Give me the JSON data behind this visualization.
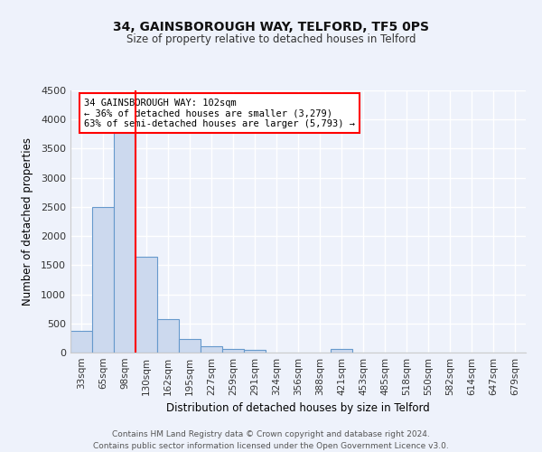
{
  "title1": "34, GAINSBOROUGH WAY, TELFORD, TF5 0PS",
  "title2": "Size of property relative to detached houses in Telford",
  "xlabel": "Distribution of detached houses by size in Telford",
  "ylabel": "Number of detached properties",
  "categories": [
    "33sqm",
    "65sqm",
    "98sqm",
    "130sqm",
    "162sqm",
    "195sqm",
    "227sqm",
    "259sqm",
    "291sqm",
    "324sqm",
    "356sqm",
    "388sqm",
    "421sqm",
    "453sqm",
    "485sqm",
    "518sqm",
    "550sqm",
    "582sqm",
    "614sqm",
    "647sqm",
    "679sqm"
  ],
  "values": [
    380,
    2500,
    3800,
    1650,
    580,
    240,
    105,
    55,
    40,
    0,
    0,
    0,
    55,
    0,
    0,
    0,
    0,
    0,
    0,
    0,
    0
  ],
  "bar_color": "#ccd9ee",
  "bar_edge_color": "#6699cc",
  "red_line_index": 2,
  "annotation_text": "34 GAINSBOROUGH WAY: 102sqm\n← 36% of detached houses are smaller (3,279)\n63% of semi-detached houses are larger (5,793) →",
  "annotation_box_color": "white",
  "annotation_box_edge_color": "red",
  "red_line_color": "red",
  "background_color": "#eef2fb",
  "plot_bg_color": "#eef2fb",
  "grid_color": "white",
  "ylim": [
    0,
    4500
  ],
  "yticks": [
    0,
    500,
    1000,
    1500,
    2000,
    2500,
    3000,
    3500,
    4000,
    4500
  ],
  "footer_line1": "Contains HM Land Registry data © Crown copyright and database right 2024.",
  "footer_line2": "Contains public sector information licensed under the Open Government Licence v3.0."
}
